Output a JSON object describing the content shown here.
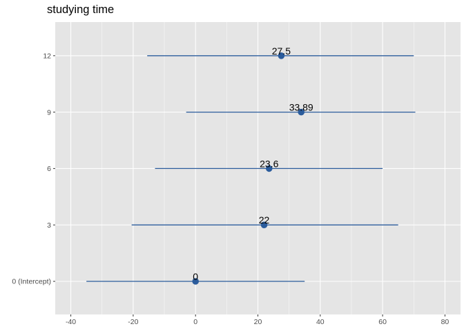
{
  "chart_data": {
    "type": "forest",
    "title": "studying time",
    "xlabel": "",
    "ylabel": "",
    "xlim": [
      -45,
      85
    ],
    "x_ticks": [
      -40,
      -20,
      0,
      20,
      40,
      60,
      80
    ],
    "x_tick_labels": [
      "-40",
      "-20",
      "0",
      "20",
      "40",
      "60",
      "80"
    ],
    "grid": true,
    "point_color": "#2b5c9c",
    "line_color": "#2b5c9c",
    "panel_background": "#e5e5e5",
    "grid_color": "#ffffff",
    "categories": [
      "0 (Intercept)",
      "3",
      "6",
      "9",
      "12"
    ],
    "estimates": [
      0,
      22,
      23.6,
      33.89,
      27.5
    ],
    "ci_low": [
      -35,
      -20.5,
      -13,
      -3,
      -15.5
    ],
    "ci_high": [
      35,
      65,
      60,
      70.5,
      70
    ],
    "labels": [
      "0",
      "22",
      "23.6",
      "33.89",
      "27.5"
    ]
  }
}
